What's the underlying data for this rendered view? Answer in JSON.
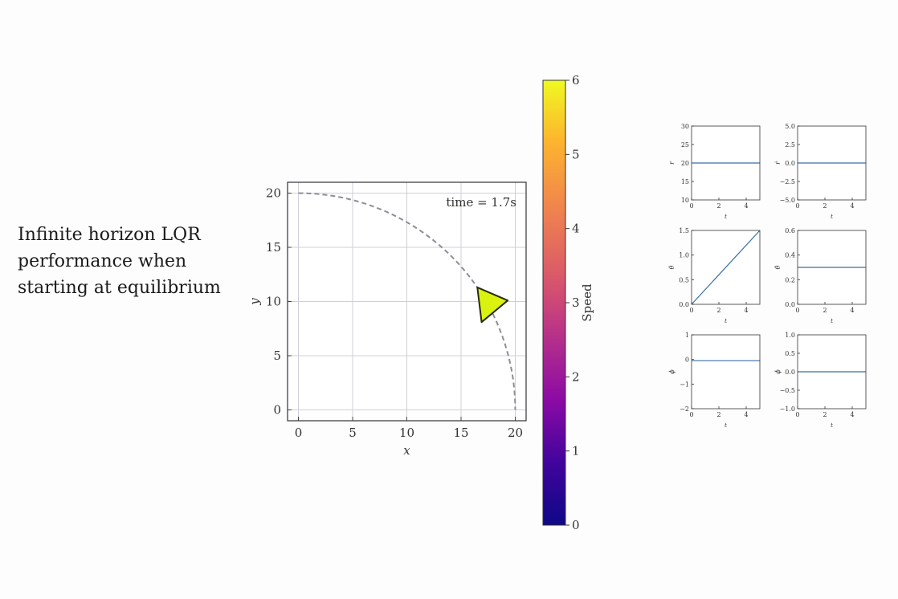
{
  "caption": {
    "lines": [
      "Infinite horizon LQR",
      "performance when",
      "starting at equilibrium"
    ]
  },
  "chart_data": [
    {
      "type": "scatter",
      "xlabel": "x",
      "ylabel": "y",
      "xlim": [
        -1,
        21
      ],
      "ylim": [
        -1,
        21
      ],
      "xticks": [
        0,
        5,
        10,
        15,
        20
      ],
      "yticks": [
        0,
        5,
        10,
        15,
        20
      ],
      "grid": true,
      "annotation": "time = 1.7s",
      "reference_path": {
        "shape": "quarter-circle",
        "center": [
          0,
          0
        ],
        "radius": 20,
        "style": "dashed"
      },
      "vehicle": {
        "shape": "triangle",
        "color": "#d9f20f",
        "vertices": [
          [
            16.5,
            11.3
          ],
          [
            19.3,
            10.1
          ],
          [
            16.9,
            8.1
          ]
        ]
      },
      "colorbar": {
        "label": "Speed",
        "range": [
          0,
          6
        ],
        "ticks": [
          0,
          1,
          2,
          3,
          4,
          5,
          6
        ],
        "colormap": "plasma"
      }
    },
    {
      "type": "line",
      "xlabel": "t",
      "ylabel": "r",
      "ylim": [
        10,
        30
      ],
      "yticks": [
        "30",
        "25",
        "20",
        "15",
        "10"
      ],
      "xticks": [
        "0",
        "2",
        "4"
      ],
      "xlim": [
        0,
        5
      ],
      "x": [
        0,
        5
      ],
      "y": [
        20,
        20
      ]
    },
    {
      "type": "line",
      "xlabel": "t",
      "ylabel": "ṙ",
      "ylim": [
        -5,
        5
      ],
      "yticks": [
        "5.0",
        "2.5",
        "0.0",
        "−2.5",
        "−5.0"
      ],
      "xticks": [
        "0",
        "2",
        "4"
      ],
      "xlim": [
        0,
        5
      ],
      "x": [
        0,
        5
      ],
      "y": [
        0,
        0
      ]
    },
    {
      "type": "line",
      "xlabel": "t",
      "ylabel": "θ",
      "ylim": [
        0,
        1.5
      ],
      "yticks": [
        "1.5",
        "1.0",
        "0.5",
        "0.0"
      ],
      "xticks": [
        "0",
        "2",
        "4"
      ],
      "xlim": [
        0,
        5
      ],
      "x": [
        0,
        5
      ],
      "y": [
        0,
        1.5
      ]
    },
    {
      "type": "line",
      "xlabel": "t",
      "ylabel": "θ̇",
      "ylim": [
        0,
        0.6
      ],
      "yticks": [
        "0.6",
        "0.4",
        "0.2",
        "0.0"
      ],
      "xticks": [
        "0",
        "2",
        "4"
      ],
      "xlim": [
        0,
        5
      ],
      "x": [
        0,
        5
      ],
      "y": [
        0.3,
        0.3
      ]
    },
    {
      "type": "line",
      "xlabel": "t",
      "ylabel": "ϕ",
      "ylim": [
        -2,
        1
      ],
      "yticks": [
        "1",
        "0",
        "−1",
        "−2"
      ],
      "xticks": [
        "0",
        "2",
        "4"
      ],
      "xlim": [
        0,
        5
      ],
      "x": [
        0,
        5
      ],
      "y": [
        -0.05,
        -0.05
      ]
    },
    {
      "type": "line",
      "xlabel": "t",
      "ylabel": "ϕ̇",
      "ylim": [
        -1,
        1
      ],
      "yticks": [
        "1.0",
        "0.5",
        "0.0",
        "−0.5",
        "−1.0"
      ],
      "xticks": [
        "0",
        "2",
        "4"
      ],
      "xlim": [
        0,
        5
      ],
      "x": [
        0,
        5
      ],
      "y": [
        0,
        0
      ]
    }
  ]
}
